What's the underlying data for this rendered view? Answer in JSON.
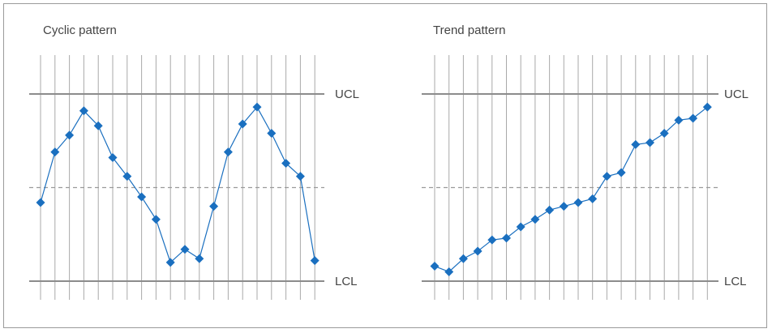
{
  "chart_data": [
    {
      "type": "line",
      "title": "Cyclic pattern",
      "control_labels": {
        "upper": "UCL",
        "lower": "LCL"
      },
      "ylim": [
        0,
        100
      ],
      "ucl": 100,
      "center": 50,
      "lcl": 0,
      "grid": "vertical",
      "marker": "diamond",
      "color": "#1a6fbf",
      "values": [
        42,
        69,
        78,
        91,
        83,
        66,
        56,
        45,
        33,
        10,
        17,
        12,
        40,
        69,
        84,
        93,
        79,
        63,
        56,
        11
      ]
    },
    {
      "type": "line",
      "title": "Trend pattern",
      "control_labels": {
        "upper": "UCL",
        "lower": "LCL"
      },
      "ylim": [
        0,
        100
      ],
      "ucl": 100,
      "center": 50,
      "lcl": 0,
      "grid": "vertical",
      "marker": "diamond",
      "color": "#1a6fbf",
      "values": [
        8,
        5,
        12,
        16,
        22,
        23,
        29,
        33,
        38,
        40,
        42,
        44,
        56,
        58,
        73,
        74,
        79,
        86,
        87,
        93
      ]
    }
  ]
}
